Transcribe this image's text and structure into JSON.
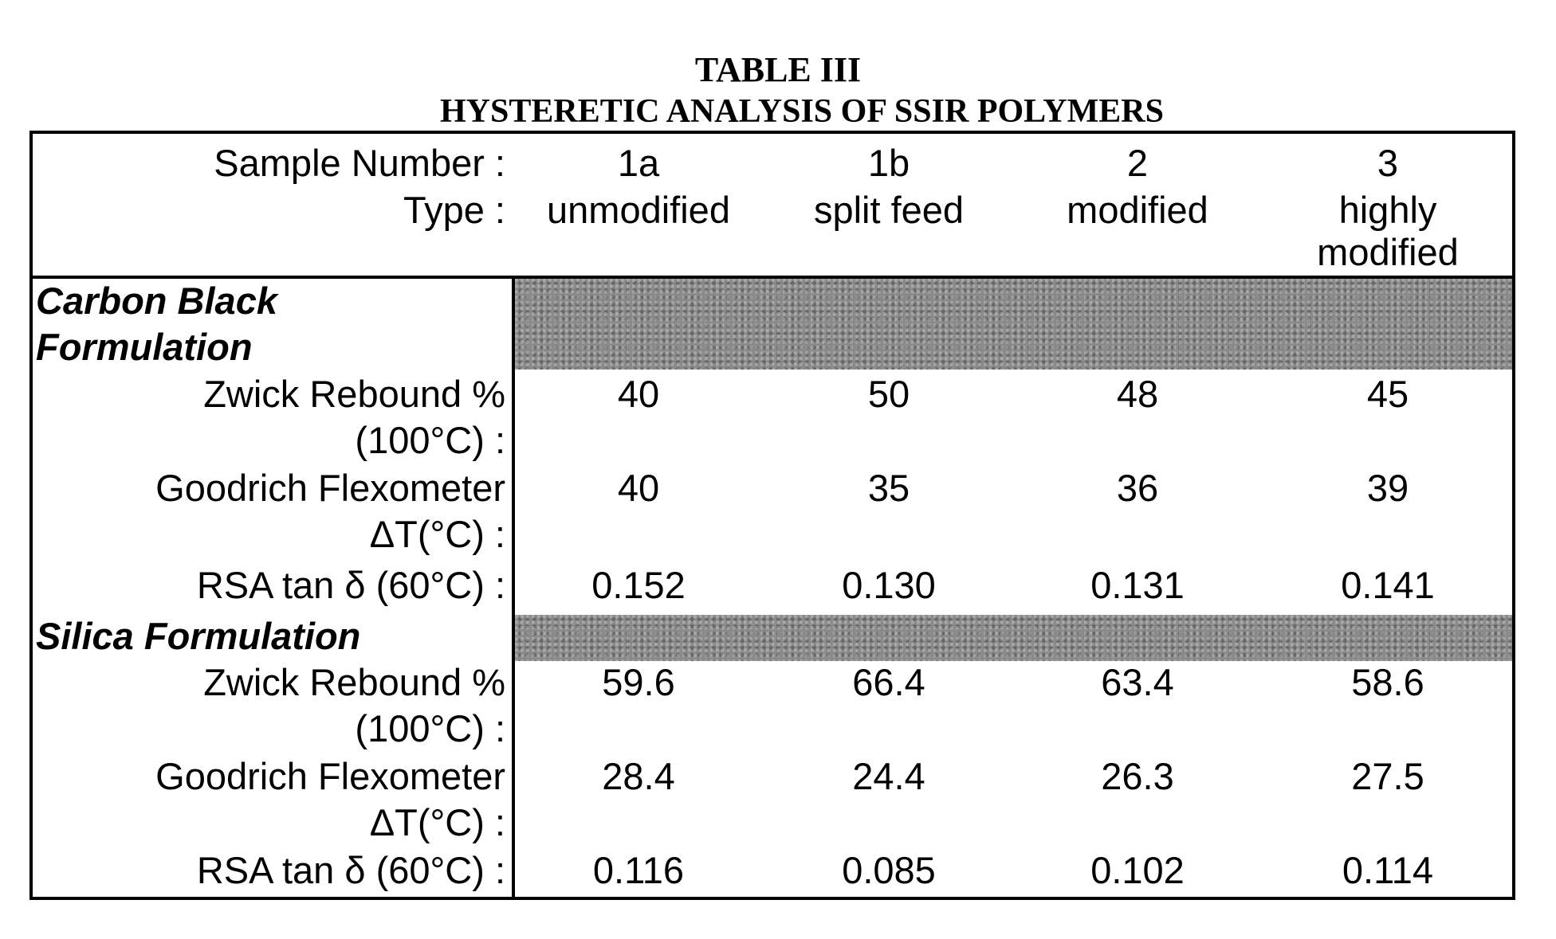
{
  "table": {
    "title": "TABLE III",
    "subtitle": "HYSTERETIC ANALYSIS OF SSIR POLYMERS",
    "header": {
      "sample_label": "Sample Number :",
      "type_label": "Type :",
      "columns": [
        {
          "number": "1a",
          "type": "unmodified"
        },
        {
          "number": "1b",
          "type": "split feed"
        },
        {
          "number": "2",
          "type": "modified"
        },
        {
          "number": "3",
          "type": "highly",
          "type2": "modified"
        }
      ]
    },
    "sections": [
      {
        "name_line1": "Carbon Black",
        "name_line2": "Formulation",
        "rows": [
          {
            "label1": "Zwick Rebound %",
            "label2": "(100°C) :",
            "values": [
              "40",
              "50",
              "48",
              "45"
            ]
          },
          {
            "label1": "Goodrich Flexometer",
            "label2": "ΔT(°C) :",
            "values": [
              "40",
              "35",
              "36",
              "39"
            ]
          },
          {
            "label1": "RSA tan δ (60°C) :",
            "values": [
              "0.152",
              "0.130",
              "0.131",
              "0.141"
            ]
          }
        ]
      },
      {
        "name_line1": "Silica Formulation",
        "rows": [
          {
            "label1": "Zwick Rebound %",
            "label2": "(100°C) :",
            "values": [
              "59.6",
              "66.4",
              "63.4",
              "58.6"
            ]
          },
          {
            "label1": "Goodrich Flexometer",
            "label2": "ΔT(°C) :",
            "values": [
              "28.4",
              "24.4",
              "26.3",
              "27.5"
            ]
          },
          {
            "label1": "RSA tan δ (60°C) :",
            "values": [
              "0.116",
              "0.085",
              "0.102",
              "0.114"
            ]
          }
        ]
      }
    ]
  }
}
